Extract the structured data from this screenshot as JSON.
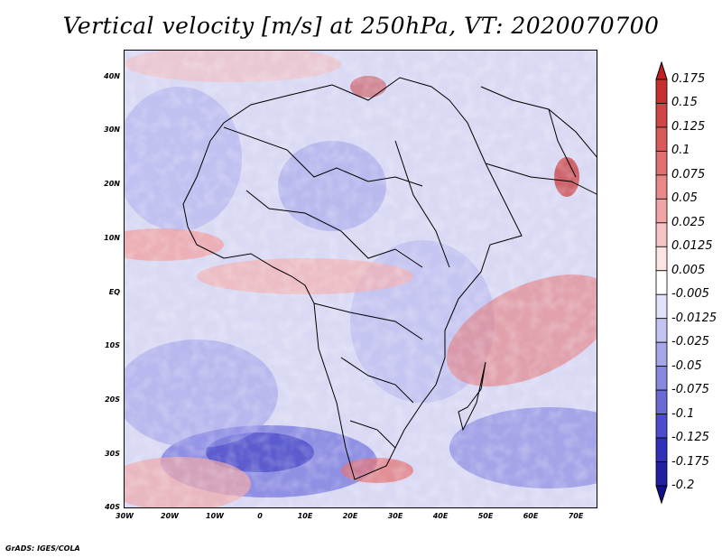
{
  "title": "Vertical velocity [m/s] at 250hPa, VT: 2020070700",
  "credit": "GrADS: IGES/COLA",
  "lat_labels": [
    "40N",
    "30N",
    "20N",
    "10N",
    "EQ",
    "10S",
    "20S",
    "30S",
    "40S"
  ],
  "lon_labels": [
    "30W",
    "20W",
    "10W",
    "0",
    "10E",
    "20E",
    "30E",
    "40E",
    "50E",
    "60E",
    "70E"
  ],
  "colorbar": {
    "labels": [
      "0.175",
      "0.15",
      "0.125",
      "0.1",
      "0.075",
      "0.05",
      "0.025",
      "0.0125",
      "0.005",
      "-0.005",
      "-0.0125",
      "-0.025",
      "-0.05",
      "-0.075",
      "-0.1",
      "-0.125",
      "-0.175",
      "-0.2"
    ],
    "colors": [
      "#c02020",
      "#c83030",
      "#d04545",
      "#d85a5a",
      "#e07070",
      "#e88888",
      "#f0a4a4",
      "#f7c4c4",
      "#fde4e4",
      "#ffffff",
      "#e2e2fa",
      "#c4c4f2",
      "#a6a6ea",
      "#8888e0",
      "#6a6ad6",
      "#4c4ccc",
      "#3030b8",
      "#2020a0",
      "#10108c"
    ]
  }
}
